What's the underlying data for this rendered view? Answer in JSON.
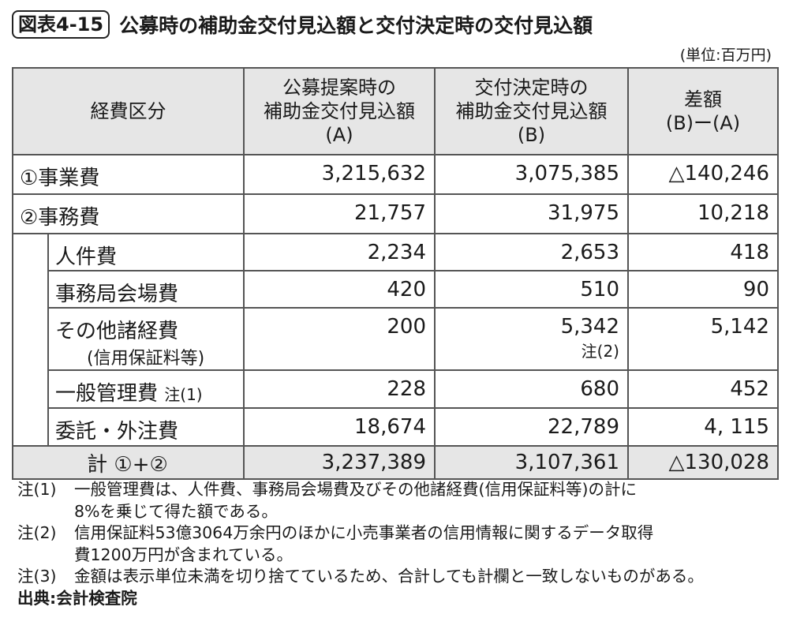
{
  "header": {
    "figure_label": "図表4-15",
    "title": "公募時の補助金交付見込額と交付決定時の交付見込額",
    "unit": "(単位:百万円)"
  },
  "table": {
    "columns": [
      [
        "経費区分"
      ],
      [
        "公募提案時の",
        "補助金交付見込額",
        "(A)"
      ],
      [
        "交付決定時の",
        "補助金交付見込額",
        "(B)"
      ],
      [
        "差額",
        "(B)ー(A)"
      ]
    ],
    "rows": [
      {
        "label": "①事業費",
        "a": "3,215,632",
        "b": "3,075,385",
        "diff": "△140,246"
      },
      {
        "label": "②事務費",
        "a": "21,757",
        "b": "31,975",
        "diff": "10,218"
      },
      {
        "label": "人件費",
        "a": "2,234",
        "b": "2,653",
        "diff": "418"
      },
      {
        "label": "事務局会場費",
        "a": "420",
        "b": "510",
        "diff": "90"
      },
      {
        "label": "その他諸経費",
        "sublabel": "(信用保証料等)",
        "a": "200",
        "b": "5,342",
        "b_note": "注(2)",
        "diff": "5,142"
      },
      {
        "label": "一般管理費",
        "label_note": "注(1)",
        "a": "228",
        "b": "680",
        "diff": "452"
      },
      {
        "label": "委託・外注費",
        "a": "18,674",
        "b": "22,789",
        "diff": "4, 115"
      },
      {
        "label": "計 ①+②",
        "a": "3,237,389",
        "b": "3,107,361",
        "diff": "△130,028"
      }
    ]
  },
  "notes": [
    {
      "mark": "注(1)",
      "lines": [
        "一般管理費は、人件費、事務局会場費及びその他諸経費(信用保証料等)の計に",
        "8%を乗じて得た額である。"
      ]
    },
    {
      "mark": "注(2)",
      "lines": [
        "信用保証料53億3064万余円のほかに小売事業者の信用情報に関するデータ取得",
        "費1200万円が含まれている。"
      ]
    },
    {
      "mark": "注(3)",
      "lines": [
        "金額は表示単位未満を切り捨てているため、合計しても計欄と一致しないものがある。"
      ]
    }
  ],
  "source": "出典:会計検査院"
}
